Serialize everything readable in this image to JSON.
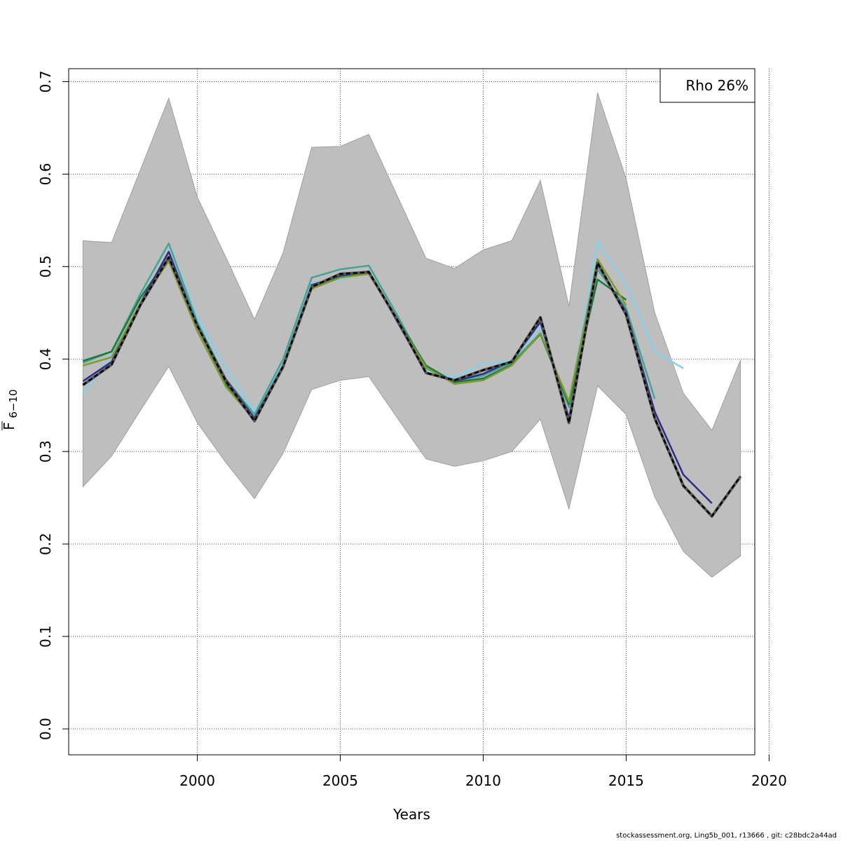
{
  "chart_data": {
    "type": "line",
    "xlabel": "Years",
    "ylabel_main": "F",
    "ylabel_sub": "6−10",
    "xlim": [
      1995.5,
      2019.5
    ],
    "ylim": [
      -0.028,
      0.714
    ],
    "x_ticks": [
      2000,
      2005,
      2010,
      2015,
      2020
    ],
    "y_ticks": [
      0.0,
      0.1,
      0.2,
      0.3,
      0.4,
      0.5,
      0.6,
      0.7
    ],
    "x_tick_labels": [
      "2000",
      "2005",
      "2010",
      "2015",
      "2020"
    ],
    "y_tick_labels": [
      "0.0",
      "0.1",
      "0.2",
      "0.3",
      "0.4",
      "0.5",
      "0.6",
      "0.7"
    ],
    "grid": true,
    "legend": {
      "position": "top-right",
      "text": "Rho 26%"
    },
    "band": {
      "color": "#bebebe",
      "x": [
        1996,
        1997,
        1998,
        1999,
        2000,
        2001,
        2002,
        2003,
        2004,
        2005,
        2006,
        2007,
        2008,
        2009,
        2010,
        2011,
        2012,
        2013,
        2014,
        2015,
        2016,
        2017,
        2018,
        2019
      ],
      "upper": [
        0.528,
        0.526,
        0.604,
        0.682,
        0.575,
        0.51,
        0.443,
        0.515,
        0.629,
        0.63,
        0.643,
        0.576,
        0.509,
        0.498,
        0.518,
        0.528,
        0.593,
        0.457,
        0.688,
        0.595,
        0.45,
        0.363,
        0.323,
        0.399
      ],
      "lower": [
        0.262,
        0.295,
        0.344,
        0.392,
        0.331,
        0.288,
        0.249,
        0.298,
        0.367,
        0.377,
        0.381,
        0.336,
        0.292,
        0.284,
        0.29,
        0.3,
        0.335,
        0.238,
        0.371,
        0.34,
        0.251,
        0.192,
        0.164,
        0.187
      ]
    },
    "series": [
      {
        "color": "#87ceeb",
        "x": [
          1996,
          1997,
          1998,
          1999,
          2000,
          2001,
          2002,
          2003,
          2004,
          2005,
          2006,
          2007,
          2008,
          2009,
          2010,
          2011,
          2012,
          2013,
          2014,
          2015,
          2016,
          2017
        ],
        "values": [
          0.362,
          0.405,
          0.47,
          0.525,
          0.445,
          0.39,
          0.343,
          0.395,
          0.482,
          0.486,
          0.495,
          0.443,
          0.388,
          0.38,
          0.395,
          0.398,
          0.433,
          0.35,
          0.527,
          0.481,
          0.408,
          0.39
        ]
      },
      {
        "color": "#43a592",
        "x": [
          1996,
          1997,
          1998,
          1999,
          2000,
          2001,
          2002,
          2003,
          2004,
          2005,
          2006,
          2007,
          2008,
          2009,
          2010,
          2011,
          2012,
          2013,
          2014,
          2015,
          2016
        ],
        "values": [
          0.396,
          0.408,
          0.47,
          0.525,
          0.44,
          0.378,
          0.34,
          0.4,
          0.488,
          0.497,
          0.501,
          0.447,
          0.39,
          0.376,
          0.382,
          0.396,
          0.428,
          0.348,
          0.497,
          0.455,
          0.357
        ]
      },
      {
        "color": "#1d7a3d",
        "x": [
          1996,
          1997,
          1998,
          1999,
          2000,
          2001,
          2002,
          2003,
          2004,
          2005,
          2006,
          2007,
          2008,
          2009,
          2010,
          2011,
          2012,
          2013,
          2014,
          2015
        ],
        "values": [
          0.398,
          0.408,
          0.466,
          0.51,
          0.436,
          0.372,
          0.336,
          0.393,
          0.476,
          0.489,
          0.494,
          0.443,
          0.393,
          0.375,
          0.379,
          0.394,
          0.427,
          0.351,
          0.486,
          0.464
        ]
      },
      {
        "color": "#2e2a8c",
        "x": [
          1996,
          1997,
          1998,
          1999,
          2000,
          2001,
          2002,
          2003,
          2004,
          2005,
          2006,
          2007,
          2008,
          2009,
          2010,
          2011,
          2012,
          2013,
          2014,
          2015,
          2016,
          2017,
          2018
        ],
        "values": [
          0.376,
          0.397,
          0.46,
          0.516,
          0.436,
          0.378,
          0.336,
          0.393,
          0.48,
          0.49,
          0.495,
          0.44,
          0.385,
          0.376,
          0.384,
          0.398,
          0.44,
          0.336,
          0.502,
          0.451,
          0.343,
          0.275,
          0.244
        ]
      },
      {
        "color": "#7f9a2e",
        "x": [
          1996,
          1997,
          1998,
          1999,
          2000,
          2001,
          2002,
          2003,
          2004,
          2005,
          2006,
          2007,
          2008,
          2009,
          2010,
          2011,
          2012,
          2013,
          2014,
          2015
        ],
        "values": [
          0.393,
          0.402,
          0.46,
          0.506,
          0.43,
          0.37,
          0.334,
          0.39,
          0.476,
          0.488,
          0.492,
          0.442,
          0.391,
          0.373,
          0.377,
          0.393,
          0.428,
          0.354,
          0.508,
          0.458
        ]
      },
      {
        "color": "#000000",
        "dashed": true,
        "x": [
          1996,
          1997,
          1998,
          1999,
          2000,
          2001,
          2002,
          2003,
          2004,
          2005,
          2006,
          2007,
          2008,
          2009,
          2010,
          2011,
          2012,
          2013,
          2014,
          2015,
          2016,
          2017,
          2018,
          2019
        ],
        "values": [
          0.372,
          0.394,
          0.458,
          0.51,
          0.436,
          0.376,
          0.333,
          0.392,
          0.478,
          0.492,
          0.494,
          0.442,
          0.385,
          0.377,
          0.388,
          0.397,
          0.445,
          0.331,
          0.504,
          0.448,
          0.336,
          0.263,
          0.23,
          0.273
        ]
      }
    ]
  },
  "footer": "stockassessment.org, Ling5b_001, r13666 , git: c28bdc2a44ad"
}
